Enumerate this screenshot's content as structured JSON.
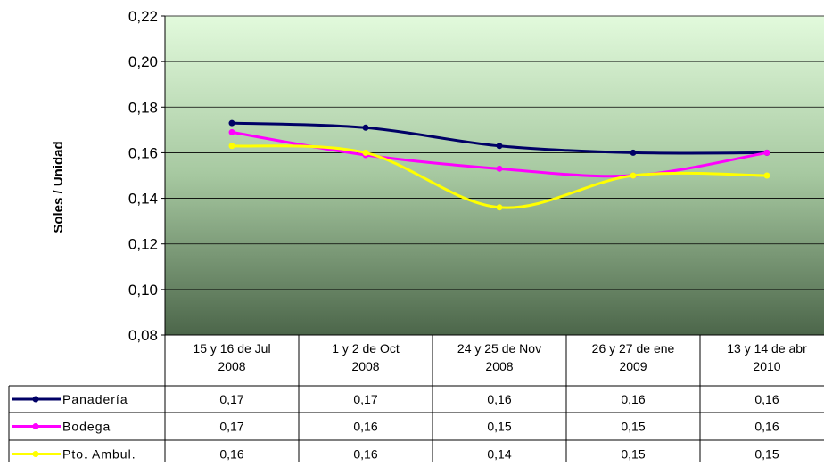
{
  "chart_data": {
    "type": "line",
    "y_label": "Soles / Unidad",
    "categories": [
      [
        "15 y 16 de Jul",
        "2008"
      ],
      [
        "1 y 2 de Oct",
        "2008"
      ],
      [
        "24 y 25 de Nov",
        "2008"
      ],
      [
        "26 y 27 de ene",
        "2009"
      ],
      [
        "13 y 14 de abr",
        "2010"
      ]
    ],
    "series": [
      {
        "name": "Panadería",
        "color": "#000066",
        "values": [
          0.173,
          0.171,
          0.163,
          0.16,
          0.16
        ],
        "value_labels": [
          "0,17",
          "0,17",
          "0,16",
          "0,16",
          "0,16"
        ]
      },
      {
        "name": "Bodega",
        "color": "#ff00ff",
        "values": [
          0.169,
          0.159,
          0.153,
          0.15,
          0.16
        ],
        "value_labels": [
          "0,17",
          "0,16",
          "0,15",
          "0,15",
          "0,16"
        ]
      },
      {
        "name": "Pto. Ambul.",
        "color": "#ffff00",
        "values": [
          0.163,
          0.16,
          0.136,
          0.15,
          0.15
        ],
        "value_labels": [
          "0,16",
          "0,16",
          "0,14",
          "0,15",
          "0,15"
        ]
      }
    ],
    "ylim": [
      0.08,
      0.22
    ],
    "yticks": [
      {
        "value": 0.08,
        "label": "0,08"
      },
      {
        "value": 0.1,
        "label": "0,10"
      },
      {
        "value": 0.12,
        "label": "0,12"
      },
      {
        "value": 0.14,
        "label": "0,14"
      },
      {
        "value": 0.16,
        "label": "0,16"
      },
      {
        "value": 0.18,
        "label": "0,18"
      },
      {
        "value": 0.2,
        "label": "0,20"
      },
      {
        "value": 0.22,
        "label": "0,22"
      }
    ],
    "grid": true
  }
}
